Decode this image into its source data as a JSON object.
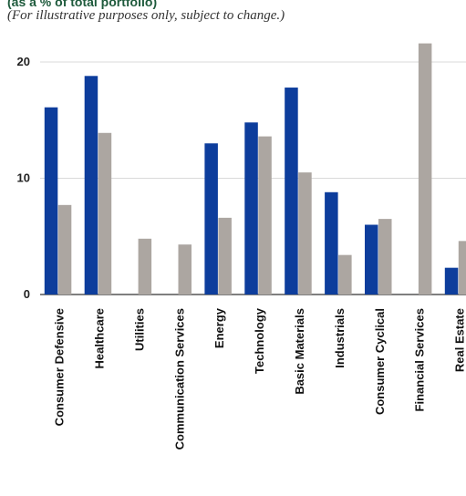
{
  "title": "(as a % of total portfolio)",
  "subtitle": "(For illustrative purposes only, subject to change.)",
  "colors": {
    "series_a": "#0d3d9c",
    "series_b": "#aca6a1",
    "grid": "#d9d9d9",
    "axis": "#333333"
  },
  "chart_data": {
    "type": "bar",
    "categories": [
      "Consumer Defensive",
      "Healthcare",
      "Utilities",
      "Communication Services",
      "Energy",
      "Technology",
      "Basic Materials",
      "Industrials",
      "Consumer Cyclical",
      "Financial Services",
      "Real Estate"
    ],
    "series": [
      {
        "values": [
          16.1,
          18.8,
          0,
          0,
          13.0,
          14.8,
          17.8,
          8.8,
          6.0,
          0,
          2.3
        ]
      },
      {
        "values": [
          7.7,
          13.9,
          4.8,
          4.3,
          6.6,
          13.6,
          10.5,
          3.4,
          6.5,
          21.6,
          4.6
        ]
      }
    ],
    "yticks": [
      "0",
      "10",
      "20"
    ],
    "ylim": [
      0,
      22
    ],
    "grid": true,
    "legend": "none"
  }
}
